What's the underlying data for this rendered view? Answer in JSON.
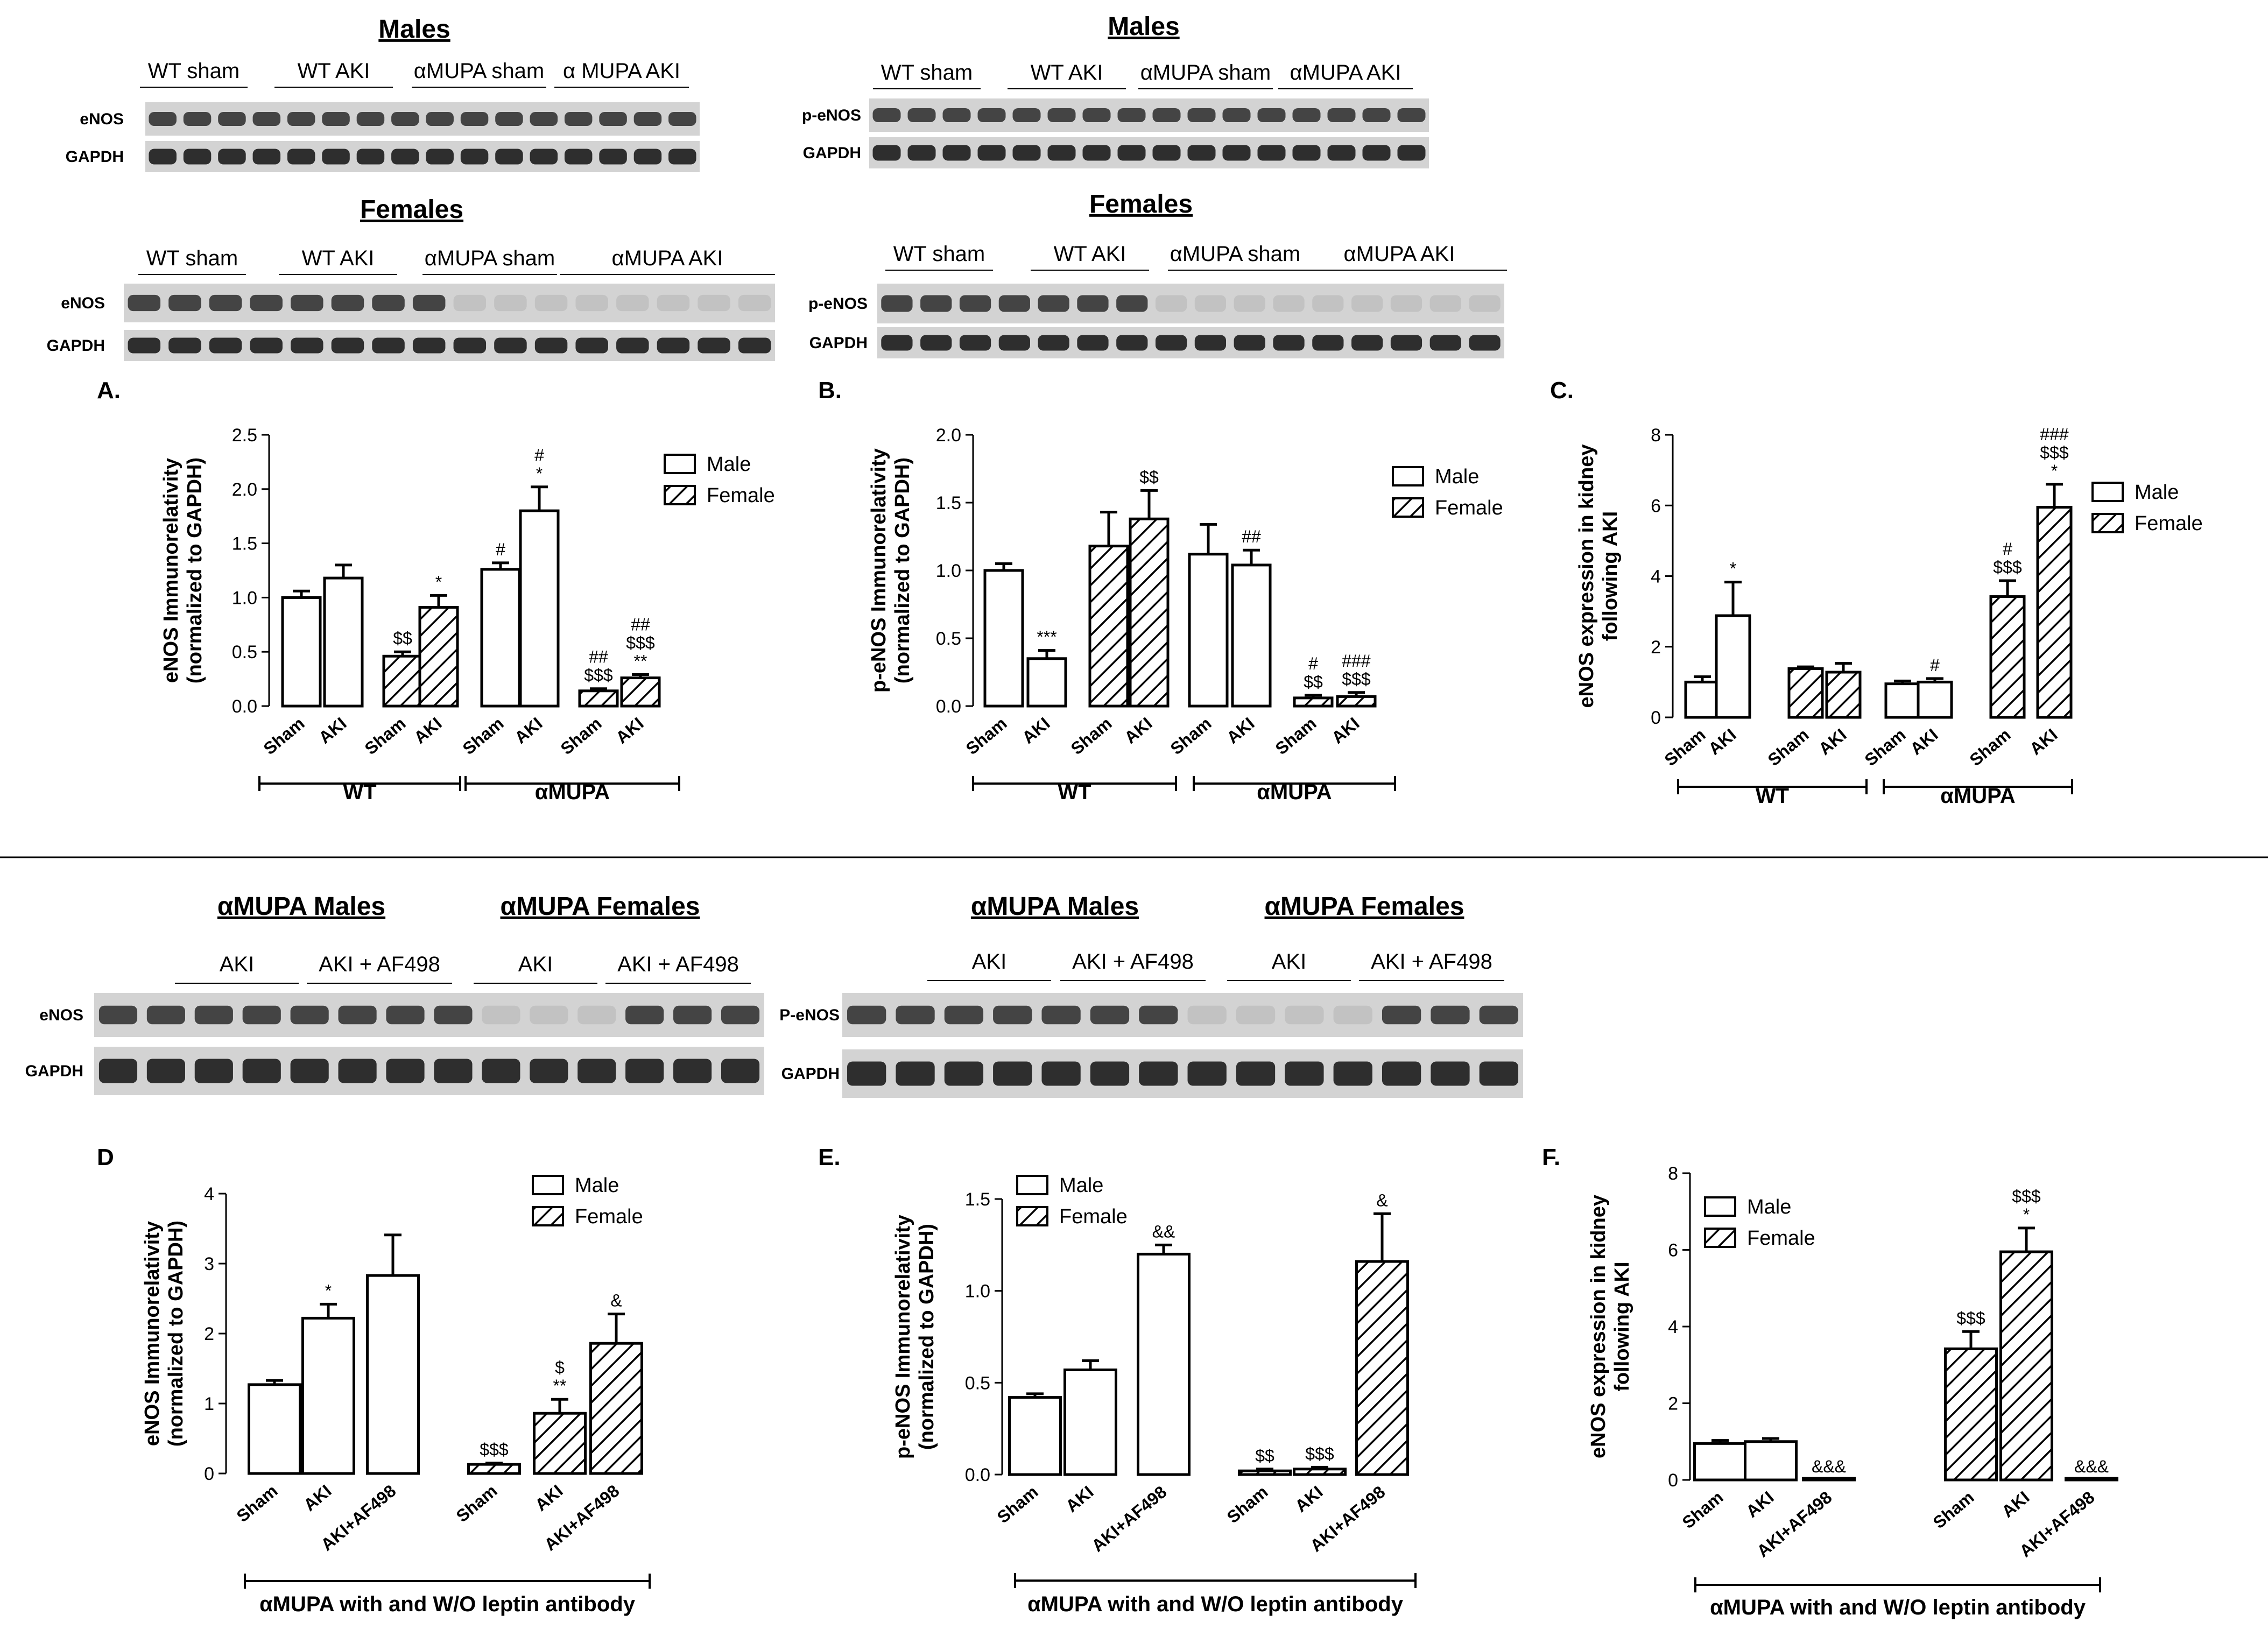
{
  "blots": {
    "top": [
      {
        "heading": "Males",
        "groups": [
          "WT sham",
          "WT AKI",
          "αMUPA sham",
          "α MUPA AKI"
        ],
        "rows": [
          "eNOS",
          "GAPDH"
        ]
      },
      {
        "heading": "Males",
        "groups": [
          "WT sham",
          "WT AKI",
          "αMUPA sham",
          "αMUPA AKI"
        ],
        "rows": [
          "p-eNOS",
          "GAPDH"
        ]
      },
      {
        "heading": "Females",
        "groups": [
          "WT sham",
          "WT AKI",
          "αMUPA sham",
          "αMUPA AKI"
        ],
        "rows": [
          "eNOS",
          "GAPDH"
        ]
      },
      {
        "heading": "Females",
        "groups": [
          "WT sham",
          "WT AKI",
          "αMUPA sham",
          "αMUPA AKI"
        ],
        "rows": [
          "p-eNOS",
          "GAPDH"
        ]
      }
    ],
    "bottom": [
      {
        "headings": [
          "αMUPA Males",
          "αMUPA Females"
        ],
        "groups": [
          "AKI",
          "AKI + AF498",
          "AKI",
          "AKI + AF498"
        ],
        "rows": [
          "eNOS",
          "GAPDH"
        ]
      },
      {
        "headings": [
          "αMUPA Males",
          "αMUPA Females"
        ],
        "groups": [
          "AKI",
          "AKI + AF498",
          "AKI",
          "AKI + AF498"
        ],
        "rows": [
          "P-eNOS",
          "GAPDH"
        ]
      }
    ]
  },
  "chart_data": [
    {
      "panel": "A.",
      "type": "bar",
      "ylabel": [
        "eNOS Immunorelativity",
        "(normalized to GAPDH)"
      ],
      "ylim": [
        0,
        2.5
      ],
      "yticks": [
        "0.0",
        "0.5",
        "1.0",
        "1.5",
        "2.0",
        "2.5"
      ],
      "legend": [
        "Male",
        "Female"
      ],
      "groups": [
        "WT",
        "αMUPA"
      ],
      "bars": [
        {
          "label": "Sham",
          "series": "Male",
          "value": 1.0,
          "err": 0.06,
          "ann": []
        },
        {
          "label": "AKI",
          "series": "Male",
          "value": 1.18,
          "err": 0.12,
          "ann": []
        },
        {
          "label": "Sham",
          "series": "Female",
          "value": 0.46,
          "err": 0.04,
          "ann": [
            "$$"
          ]
        },
        {
          "label": "AKI",
          "series": "Female",
          "value": 0.91,
          "err": 0.11,
          "ann": [
            "*"
          ]
        },
        {
          "label": "Sham",
          "series": "Male",
          "value": 1.26,
          "err": 0.06,
          "ann": [
            "#"
          ]
        },
        {
          "label": "AKI",
          "series": "Male",
          "value": 1.8,
          "err": 0.22,
          "ann": [
            "#",
            "*"
          ]
        },
        {
          "label": "Sham",
          "series": "Female",
          "value": 0.14,
          "err": 0.02,
          "ann": [
            "##",
            "$$$"
          ]
        },
        {
          "label": "AKI",
          "series": "Female",
          "value": 0.26,
          "err": 0.03,
          "ann": [
            "##",
            "$$$",
            "**"
          ]
        }
      ]
    },
    {
      "panel": "B.",
      "type": "bar",
      "ylabel": [
        "p-eNOS Immunorelativity",
        "(normalized to GAPDH)"
      ],
      "ylim": [
        0,
        2.0
      ],
      "yticks": [
        "0.0",
        "0.5",
        "1.0",
        "1.5",
        "2.0"
      ],
      "legend": [
        "Male",
        "Female"
      ],
      "groups": [
        "WT",
        "αMUPA"
      ],
      "bars": [
        {
          "label": "Sham",
          "series": "Male",
          "value": 1.0,
          "err": 0.05,
          "ann": []
        },
        {
          "label": "AKI",
          "series": "Male",
          "value": 0.35,
          "err": 0.06,
          "ann": [
            "***"
          ]
        },
        {
          "label": "Sham",
          "series": "Female",
          "value": 1.18,
          "err": 0.25,
          "ann": []
        },
        {
          "label": "AKI",
          "series": "Female",
          "value": 1.38,
          "err": 0.21,
          "ann": [
            "$$"
          ]
        },
        {
          "label": "Sham",
          "series": "Male",
          "value": 1.12,
          "err": 0.22,
          "ann": []
        },
        {
          "label": "AKI",
          "series": "Male",
          "value": 1.04,
          "err": 0.11,
          "ann": [
            "##"
          ]
        },
        {
          "label": "Sham",
          "series": "Female",
          "value": 0.06,
          "err": 0.02,
          "ann": [
            "#",
            "$$"
          ]
        },
        {
          "label": "AKI",
          "series": "Female",
          "value": 0.07,
          "err": 0.03,
          "ann": [
            "###",
            "$$$"
          ]
        }
      ]
    },
    {
      "panel": "C.",
      "type": "bar",
      "ylabel": [
        "eNOS expression in kidney",
        "following AKI"
      ],
      "ylim": [
        0,
        8
      ],
      "yticks": [
        "0",
        "2",
        "4",
        "6",
        "8"
      ],
      "legend": [
        "Male",
        "Female"
      ],
      "groups": [
        "WT",
        "αMUPA"
      ],
      "bars": [
        {
          "label": "Sham",
          "series": "Male",
          "value": 1.0,
          "err": 0.15,
          "ann": []
        },
        {
          "label": "AKI",
          "series": "Male",
          "value": 2.88,
          "err": 0.95,
          "ann": [
            "*"
          ]
        },
        {
          "label": "Sham",
          "series": "Female",
          "value": 1.38,
          "err": 0.05,
          "ann": []
        },
        {
          "label": "AKI",
          "series": "Female",
          "value": 1.28,
          "err": 0.25,
          "ann": []
        },
        {
          "label": "Sham",
          "series": "Male",
          "value": 0.95,
          "err": 0.08,
          "ann": []
        },
        {
          "label": "AKI",
          "series": "Male",
          "value": 1.0,
          "err": 0.1,
          "ann": [
            "#"
          ]
        },
        {
          "label": "Sham",
          "series": "Female",
          "value": 3.42,
          "err": 0.45,
          "ann": [
            "#",
            "$$$"
          ]
        },
        {
          "label": "AKI",
          "series": "Female",
          "value": 5.95,
          "err": 0.65,
          "ann": [
            "###",
            "$$$",
            "*"
          ]
        }
      ]
    },
    {
      "panel": "D",
      "type": "bar",
      "ylabel": [
        "eNOS Immunorelativity",
        "(normalized to GAPDH)"
      ],
      "ylim": [
        0,
        4
      ],
      "yticks": [
        "0",
        "1",
        "2",
        "3",
        "4"
      ],
      "legend": [
        "Male",
        "Female"
      ],
      "xlabel": "αMUPA with and W/O leptin antibody",
      "bars": [
        {
          "label": "Sham",
          "series": "Male",
          "value": 1.27,
          "err": 0.06,
          "ann": []
        },
        {
          "label": "AKI",
          "series": "Male",
          "value": 2.22,
          "err": 0.2,
          "ann": [
            "*"
          ]
        },
        {
          "label": "AKI+AF498",
          "series": "Male",
          "value": 2.83,
          "err": 0.58,
          "ann": []
        },
        {
          "label": "Sham",
          "series": "Female",
          "value": 0.13,
          "err": 0.02,
          "ann": [
            "$$$"
          ]
        },
        {
          "label": "AKI",
          "series": "Female",
          "value": 0.86,
          "err": 0.2,
          "ann": [
            "$",
            "**"
          ]
        },
        {
          "label": "AKI+AF498",
          "series": "Female",
          "value": 1.86,
          "err": 0.42,
          "ann": [
            "&"
          ]
        }
      ]
    },
    {
      "panel": "E.",
      "type": "bar",
      "ylabel": [
        "p-eNOS Immunorelativity",
        "(normalized to GAPDH)"
      ],
      "ylim": [
        0,
        1.5
      ],
      "yticks": [
        "0.0",
        "0.5",
        "1.0",
        "1.5"
      ],
      "legend": [
        "Male",
        "Female"
      ],
      "xlabel": "αMUPA with and W/O leptin antibody",
      "bars": [
        {
          "label": "Sham",
          "series": "Male",
          "value": 0.42,
          "err": 0.02,
          "ann": []
        },
        {
          "label": "AKI",
          "series": "Male",
          "value": 0.57,
          "err": 0.05,
          "ann": []
        },
        {
          "label": "AKI+AF498",
          "series": "Male",
          "value": 1.2,
          "err": 0.05,
          "ann": [
            "&&"
          ]
        },
        {
          "label": "Sham",
          "series": "Female",
          "value": 0.02,
          "err": 0.01,
          "ann": [
            "$$"
          ]
        },
        {
          "label": "AKI",
          "series": "Female",
          "value": 0.03,
          "err": 0.01,
          "ann": [
            "$$$"
          ]
        },
        {
          "label": "AKI+AF498",
          "series": "Female",
          "value": 1.16,
          "err": 0.26,
          "ann": [
            "&"
          ]
        }
      ]
    },
    {
      "panel": "F.",
      "type": "bar",
      "ylabel": [
        "eNOS expression in kidney",
        "following AKI"
      ],
      "ylim": [
        0,
        8
      ],
      "yticks": [
        "0",
        "2",
        "4",
        "6",
        "8"
      ],
      "legend": [
        "Male",
        "Female"
      ],
      "xlabel": "αMUPA with and W/O leptin antibody",
      "bars": [
        {
          "label": "Sham",
          "series": "Male",
          "value": 0.95,
          "err": 0.08,
          "ann": []
        },
        {
          "label": "AKI",
          "series": "Male",
          "value": 1.0,
          "err": 0.08,
          "ann": []
        },
        {
          "label": "AKI+AF498",
          "series": "Male",
          "value": 0.0,
          "err": 0,
          "ann": [
            "&&&"
          ]
        },
        {
          "label": "Sham",
          "series": "Female",
          "value": 3.42,
          "err": 0.45,
          "ann": [
            "$$$"
          ]
        },
        {
          "label": "AKI",
          "series": "Female",
          "value": 5.95,
          "err": 0.62,
          "ann": [
            "$$$",
            "*"
          ]
        },
        {
          "label": "AKI+AF498",
          "series": "Female",
          "value": 0.0,
          "err": 0,
          "ann": [
            "&&&"
          ]
        }
      ]
    }
  ]
}
